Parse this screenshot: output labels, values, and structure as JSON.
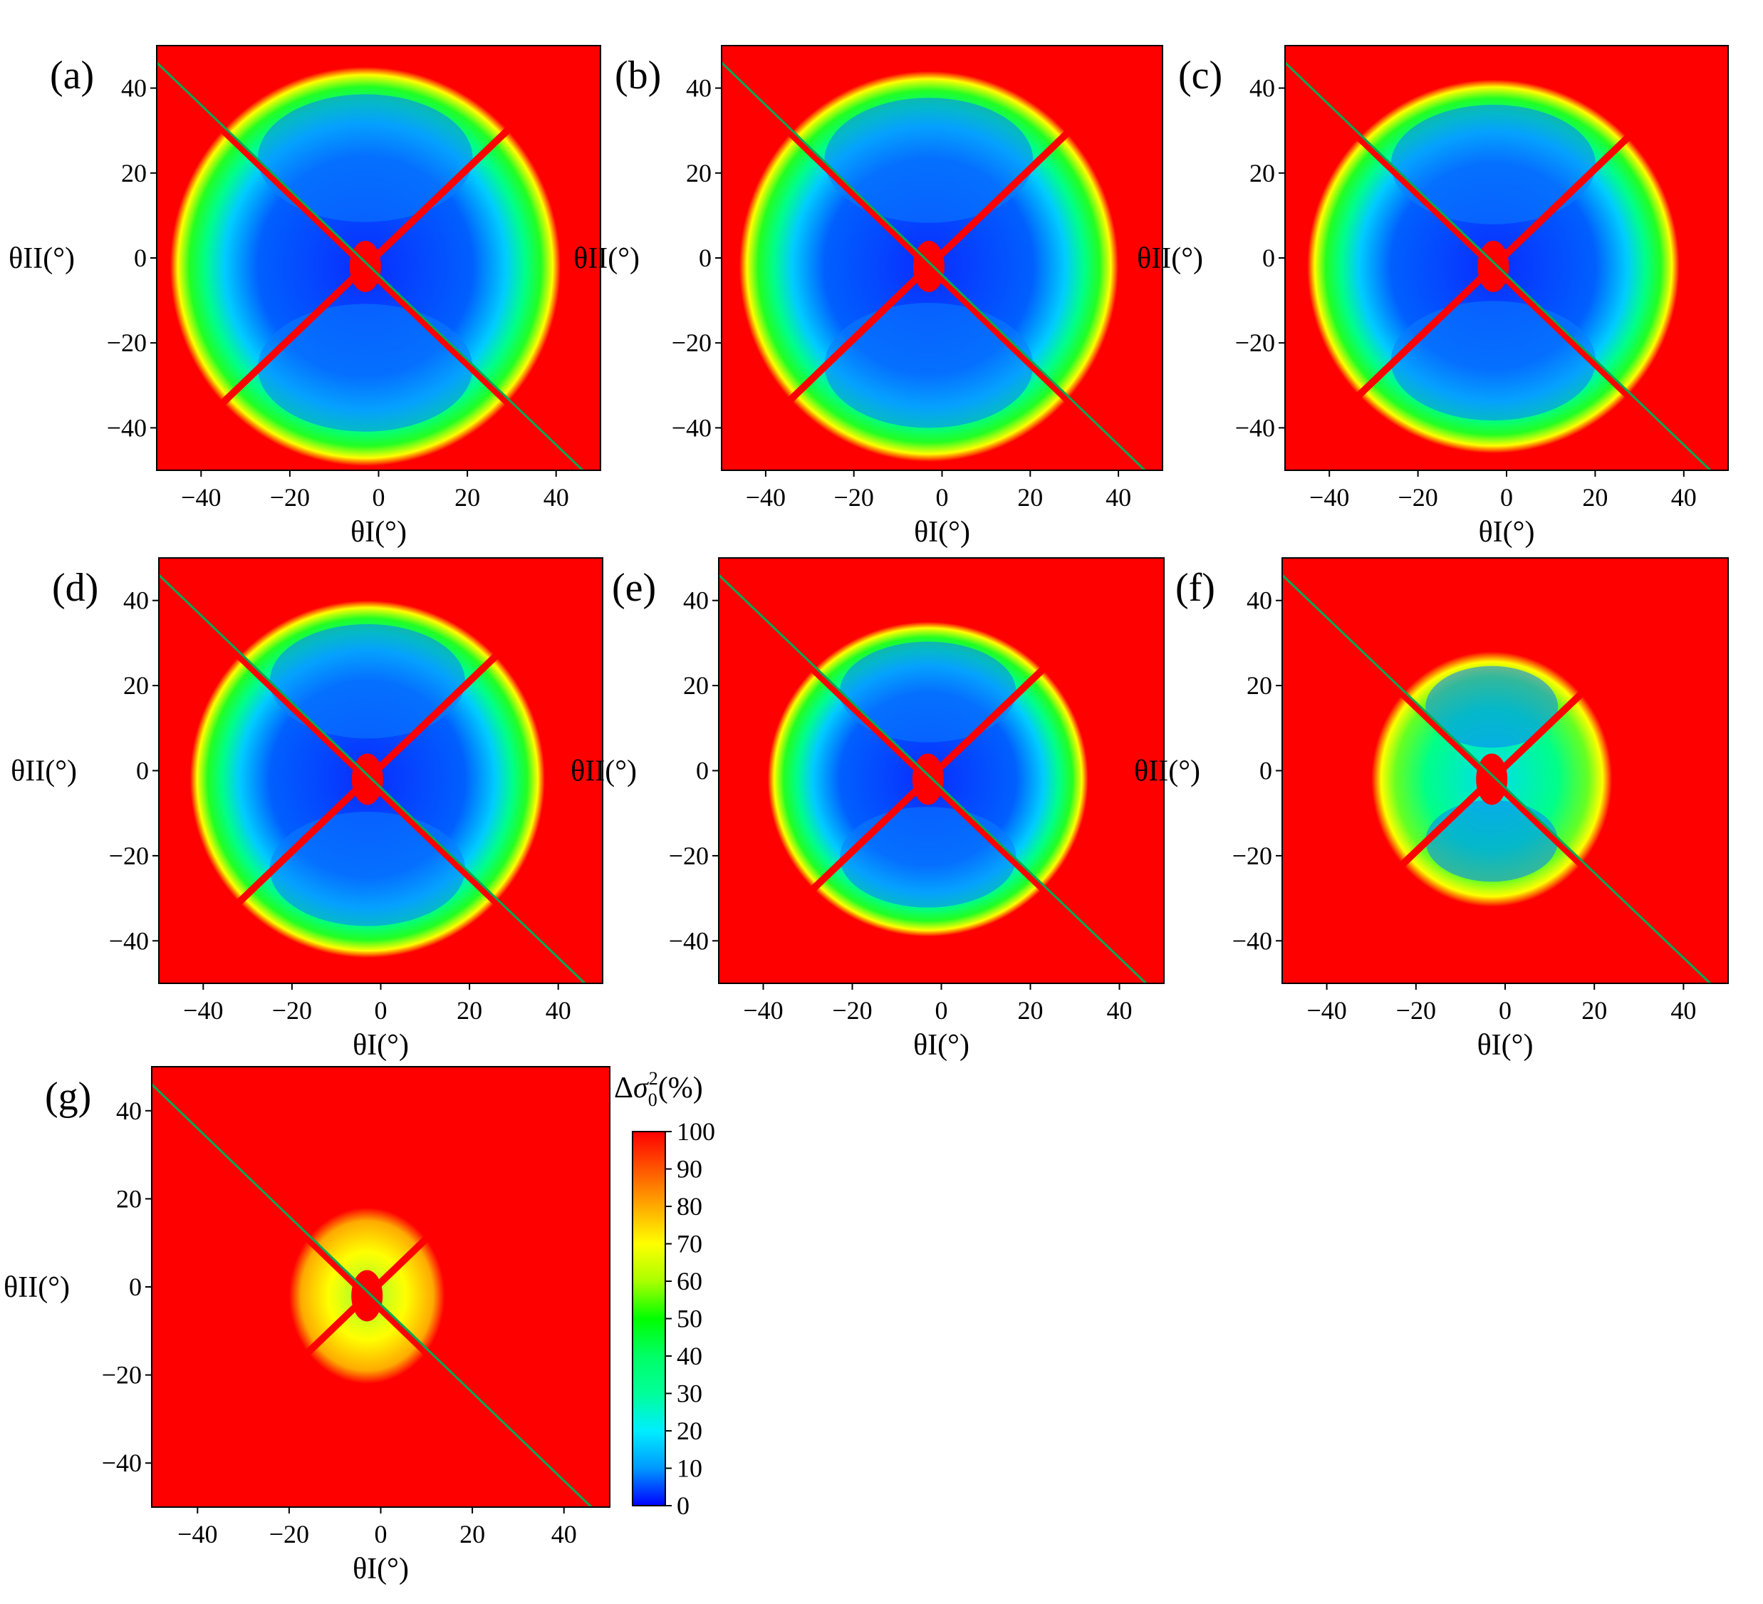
{
  "figure": {
    "colorbar": {
      "label_delta": "Δ",
      "label_sigma": "σ",
      "label_sub": "0",
      "label_sup": "2",
      "label_unit": "(%)",
      "range": [
        0,
        100
      ],
      "ticks": [
        "0",
        "10",
        "20",
        "30",
        "40",
        "50",
        "60",
        "70",
        "80",
        "90",
        "100"
      ],
      "colors": [
        "#0000ff",
        "#0099ff",
        "#00eeff",
        "#00ff99",
        "#00ff00",
        "#aaff00",
        "#ffff00",
        "#ffaa00",
        "#ff5500",
        "#ff0000"
      ]
    }
  },
  "chart_data": [
    {
      "panel": "(a)",
      "type": "heatmap",
      "xlabel": "θI(°)",
      "ylabel": "θII(°)",
      "xlim": [
        -50,
        50
      ],
      "ylim": [
        -50,
        50
      ],
      "xticks": [
        "−40",
        "−20",
        "0",
        "20",
        "40"
      ],
      "yticks": [
        "40",
        "20",
        "0",
        "−20",
        "−40"
      ],
      "z_unit": "%",
      "z_range": [
        0,
        100
      ],
      "approx_low_region_half_width": 44,
      "approx_low_region_half_height": 47
    },
    {
      "panel": "(b)",
      "type": "heatmap",
      "xlabel": "θI(°)",
      "ylabel": "θII(°)",
      "xlim": [
        -50,
        50
      ],
      "ylim": [
        -50,
        50
      ],
      "xticks": [
        "−40",
        "−20",
        "0",
        "20",
        "40"
      ],
      "yticks": [
        "40",
        "20",
        "0",
        "−20",
        "−40"
      ],
      "z_unit": "%",
      "z_range": [
        0,
        100
      ],
      "approx_low_region_half_width": 43,
      "approx_low_region_half_height": 46
    },
    {
      "panel": "(c)",
      "type": "heatmap",
      "xlabel": "θI(°)",
      "ylabel": "θII(°)",
      "xlim": [
        -50,
        50
      ],
      "ylim": [
        -50,
        50
      ],
      "xticks": [
        "−40",
        "−20",
        "0",
        "20",
        "40"
      ],
      "yticks": [
        "40",
        "20",
        "0",
        "−20",
        "−40"
      ],
      "z_unit": "%",
      "z_range": [
        0,
        100
      ],
      "approx_low_region_half_width": 42,
      "approx_low_region_half_height": 44
    },
    {
      "panel": "(d)",
      "type": "heatmap",
      "xlabel": "θI(°)",
      "ylabel": "θII(°)",
      "xlim": [
        -50,
        50
      ],
      "ylim": [
        -50,
        50
      ],
      "xticks": [
        "−40",
        "−20",
        "0",
        "20",
        "40"
      ],
      "yticks": [
        "40",
        "20",
        "0",
        "−20",
        "−40"
      ],
      "z_unit": "%",
      "z_range": [
        0,
        100
      ],
      "approx_low_region_half_width": 40,
      "approx_low_region_half_height": 42
    },
    {
      "panel": "(e)",
      "type": "heatmap",
      "xlabel": "θI(°)",
      "ylabel": "θII(°)",
      "xlim": [
        -50,
        50
      ],
      "ylim": [
        -50,
        50
      ],
      "xticks": [
        "−40",
        "−20",
        "0",
        "20",
        "40"
      ],
      "yticks": [
        "40",
        "20",
        "0",
        "−20",
        "−40"
      ],
      "z_unit": "%",
      "z_range": [
        0,
        100
      ],
      "approx_low_region_half_width": 36,
      "approx_low_region_half_height": 37
    },
    {
      "panel": "(f)",
      "type": "heatmap",
      "xlabel": "θI(°)",
      "ylabel": "θII(°)",
      "xlim": [
        -50,
        50
      ],
      "ylim": [
        -50,
        50
      ],
      "xticks": [
        "−40",
        "−20",
        "0",
        "20",
        "40"
      ],
      "yticks": [
        "40",
        "20",
        "0",
        "−20",
        "−40"
      ],
      "z_unit": "%",
      "z_range": [
        0,
        100
      ],
      "approx_low_region_half_width": 27,
      "approx_low_region_half_height": 30
    },
    {
      "panel": "(g)",
      "type": "heatmap",
      "xlabel": "θI(°)",
      "ylabel": "θII(°)",
      "xlim": [
        -50,
        50
      ],
      "ylim": [
        -50,
        50
      ],
      "xticks": [
        "−40",
        "−20",
        "0",
        "20",
        "40"
      ],
      "yticks": [
        "40",
        "20",
        "0",
        "−20",
        "−40"
      ],
      "z_unit": "%",
      "z_range": [
        0,
        100
      ],
      "approx_low_region_half_width": 17,
      "approx_low_region_half_height": 20
    }
  ]
}
